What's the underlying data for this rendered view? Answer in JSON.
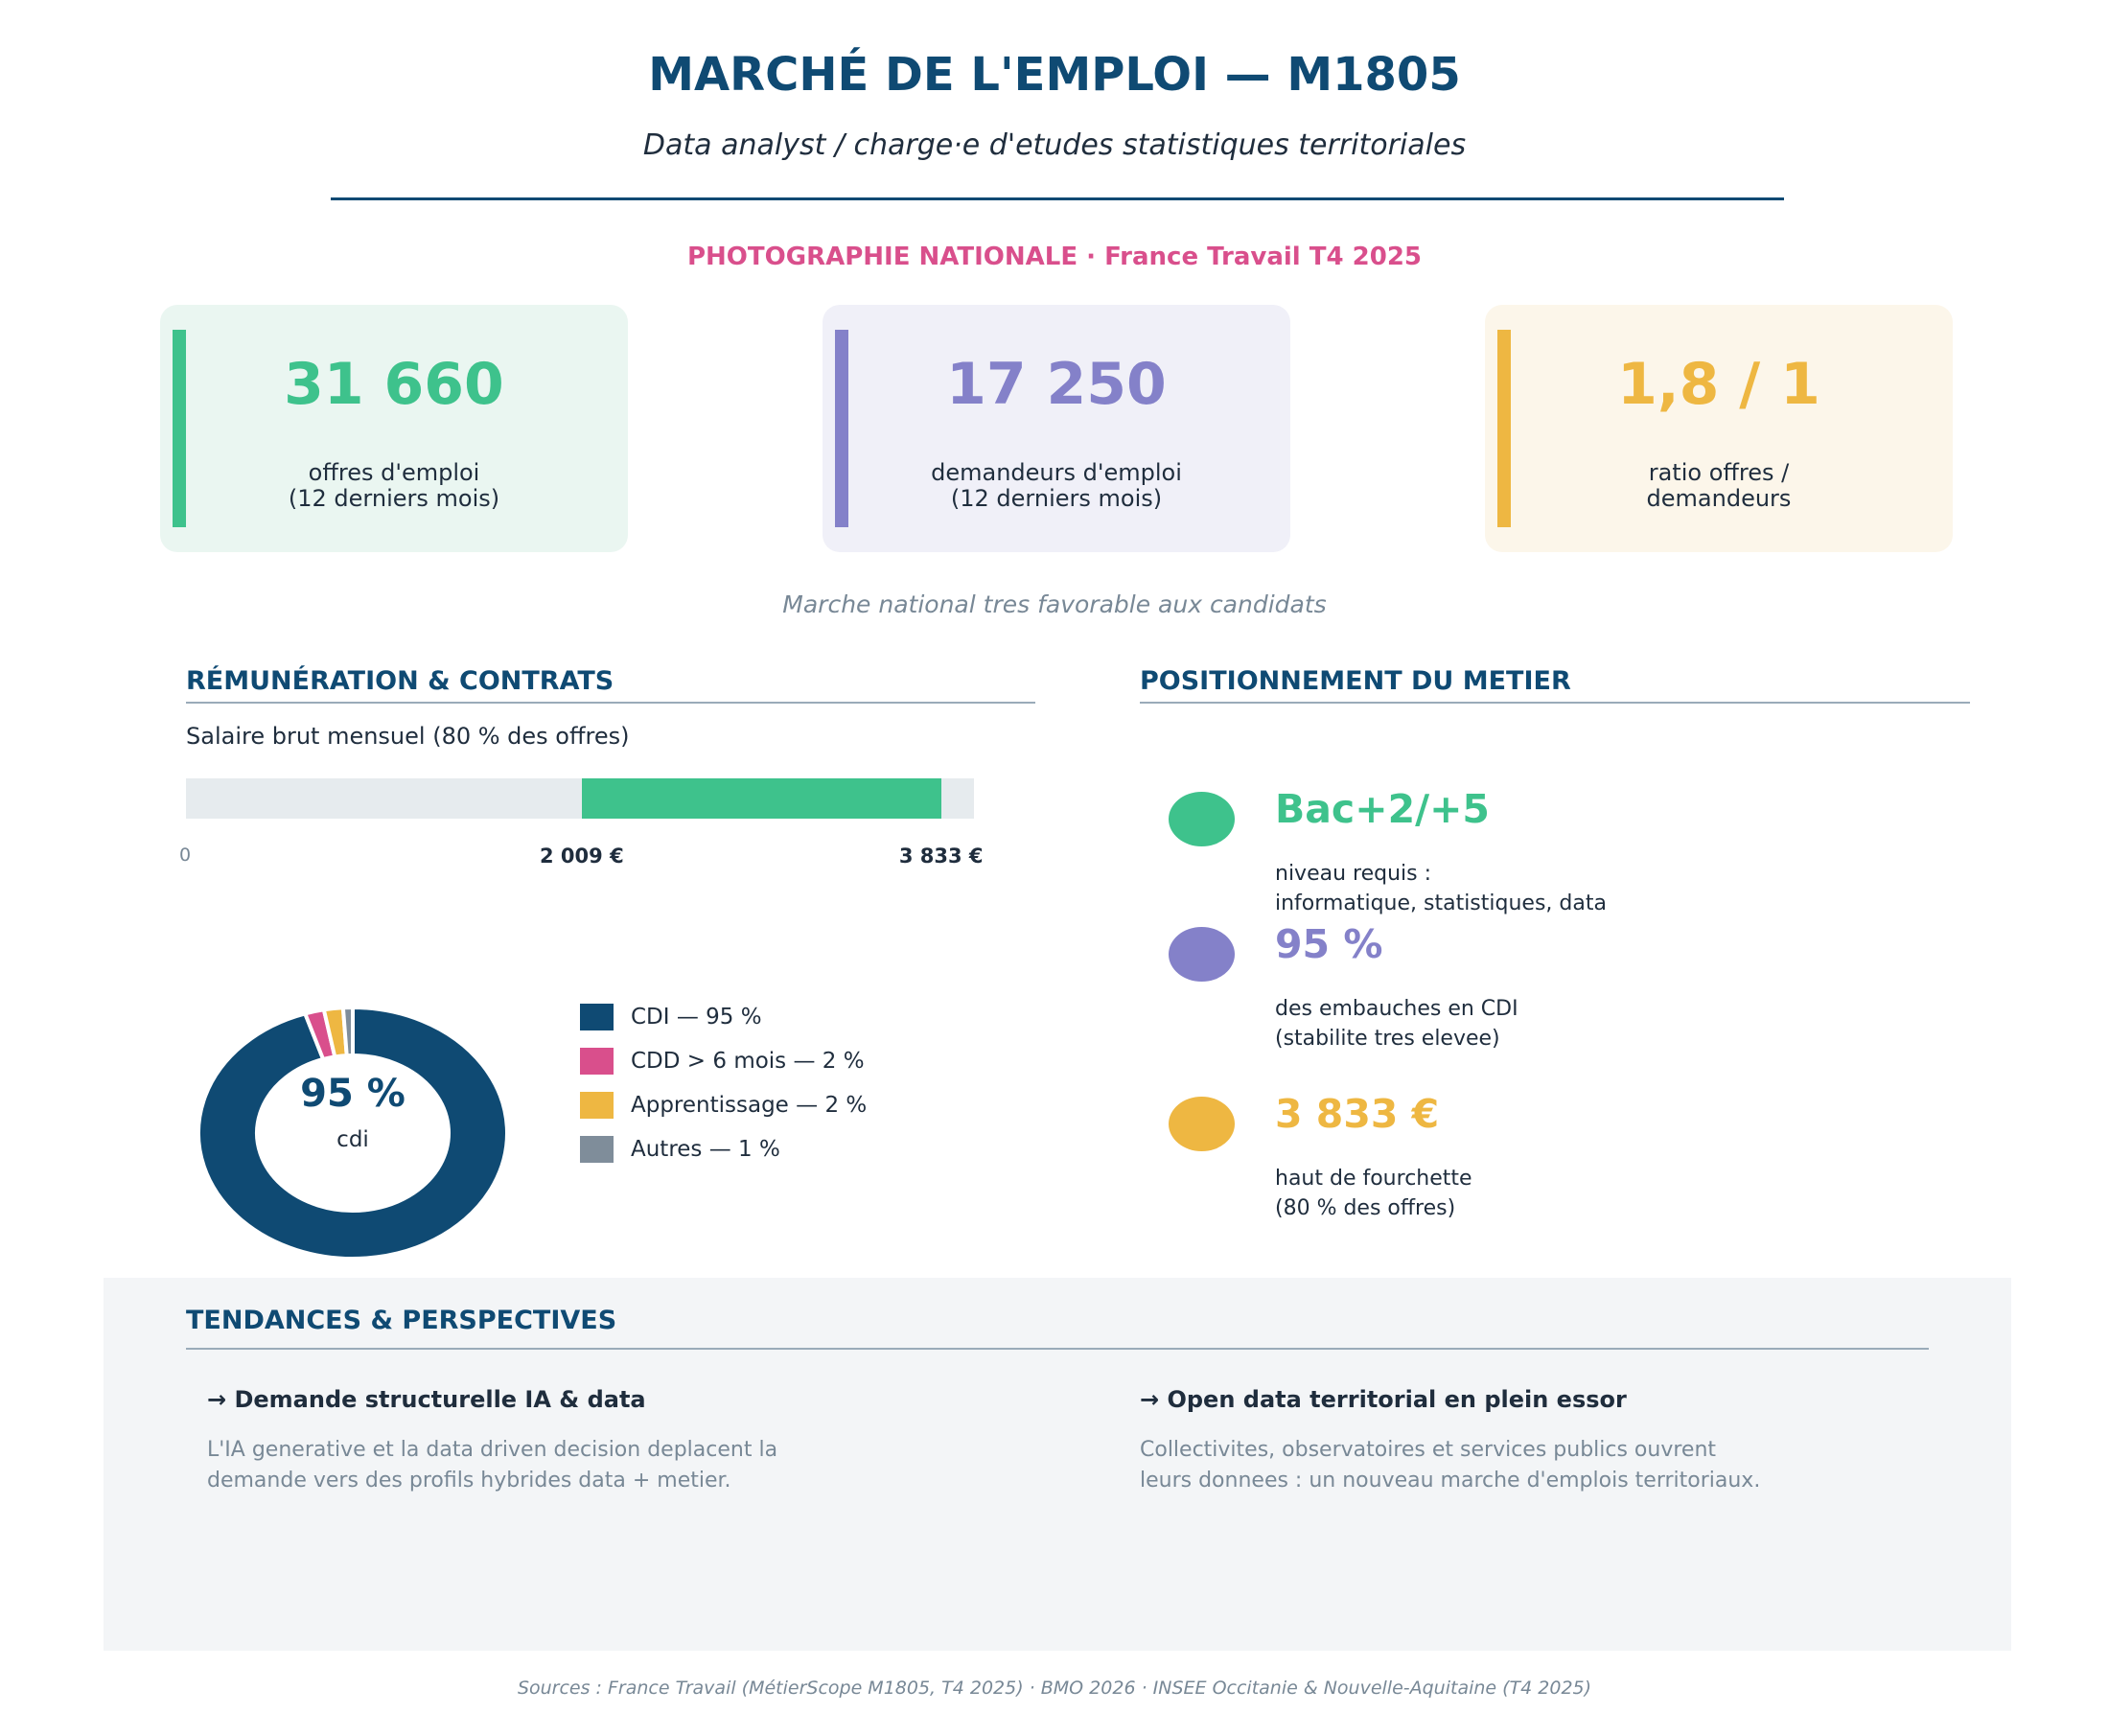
{
  "header": {
    "title": "MARCHÉ DE L'EMPLOI — M1805",
    "subtitle": "Data analyst / charge·e d'etudes statistiques territoriales"
  },
  "national": {
    "heading": "PHOTOGRAPHIE NATIONALE  ·  France Travail T4 2025",
    "kpis": [
      {
        "value": "31 660",
        "label": "offres d'emploi\n(12 derniers mois)",
        "color": "#3ec28c"
      },
      {
        "value": "17 250",
        "label": "demandeurs d'emploi\n(12 derniers mois)",
        "color": "#8481c9"
      },
      {
        "value": "1,8 / 1",
        "label": "ratio offres /\ndemandeurs",
        "color": "#eeb742"
      }
    ],
    "note": "Marche national tres favorable aux candidats"
  },
  "remuneration": {
    "title": "RÉMUNÉRATION & CONTRATS",
    "salary_label": "Salaire brut mensuel (80 % des offres)",
    "scale_max": 4000,
    "range_min": 2009,
    "range_max": 3833,
    "tick_zero": "0",
    "tick_min": "2 009 €",
    "tick_max": "3 833 €",
    "fill_color": "#3ec28c"
  },
  "contracts": {
    "center_value": "95 %",
    "center_label": "cdi",
    "segments": [
      {
        "label": "CDI — 95 %",
        "value": 95,
        "color": "#0f4a73"
      },
      {
        "label": "CDD > 6 mois — 2 %",
        "value": 2,
        "color": "#d94f8c"
      },
      {
        "label": "Apprentissage — 2 %",
        "value": 2,
        "color": "#eeb742"
      },
      {
        "label": "Autres — 1 %",
        "value": 1,
        "color": "#7f8d9a"
      }
    ]
  },
  "positionnement": {
    "title": "POSITIONNEMENT DU METIER",
    "items": [
      {
        "value": "Bac+2/+5",
        "desc": "niveau requis :\ninformatique, statistiques, data",
        "color": "#3ec28c"
      },
      {
        "value": "95 %",
        "desc": "des embauches en CDI\n(stabilite tres elevee)",
        "color": "#8481c9"
      },
      {
        "value": "3 833 €",
        "desc": "haut de fourchette\n(80 % des offres)",
        "color": "#eeb742"
      }
    ]
  },
  "trends": {
    "title": "TENDANCES & PERSPECTIVES",
    "items": [
      {
        "head": "→ Demande structurelle IA & data",
        "body": "L'IA generative et la data driven decision deplacent la\ndemande vers des profils hybrides data + metier."
      },
      {
        "head": "→ Open data territorial en plein essor",
        "body": "Collectivites, observatoires et services publics ouvrent\nleurs donnees : un nouveau marche d'emplois territoriaux."
      }
    ]
  },
  "sources": "Sources : France Travail (MétierScope M1805, T4 2025) · BMO 2026 · INSEE Occitanie & Nouvelle-Aquitaine (T4 2025)"
}
